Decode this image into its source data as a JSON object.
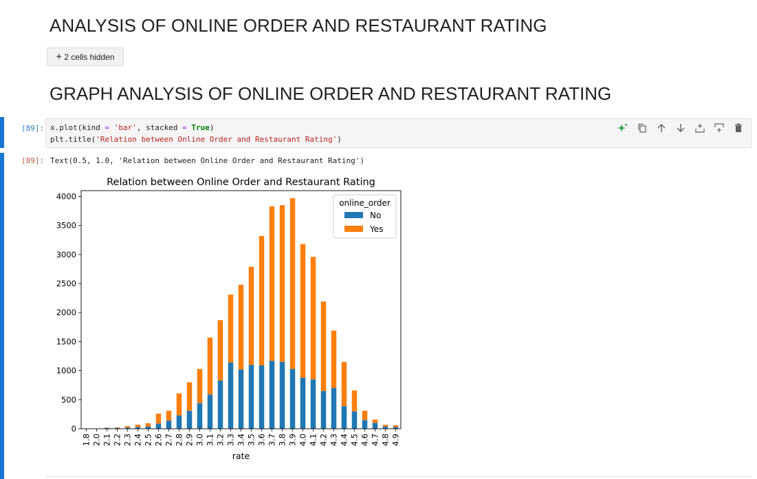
{
  "notebook": {
    "heading1": "ANALYSIS OF ONLINE ORDER AND RESTAURANT RATING",
    "hidden_cells": {
      "plus": "+",
      "label": "2 cells hidden"
    },
    "heading2": "GRAPH ANALYSIS OF ONLINE ORDER AND RESTAURANT RATING",
    "code_cell": {
      "prompt": "[89]:",
      "line1": {
        "a": "x.plot(kind ",
        "b": "=",
        "c": " ",
        "d": "'bar'",
        "e": ", stacked ",
        "f": "=",
        "g": " ",
        "h": "True",
        "i": ")"
      },
      "line2": {
        "a": "plt.title(",
        "b": "'Relation between Online Order and Restaurant Rating'",
        "c": ")"
      }
    },
    "output": {
      "prompt": "[89]:",
      "text": "Text(0.5, 1.0, 'Relation between Online Order and Restaurant Rating')"
    },
    "toolbar_icons": [
      "sparkle-icon",
      "copy-icon",
      "move-up-icon",
      "move-down-icon",
      "insert-above-icon",
      "insert-below-icon",
      "delete-icon"
    ],
    "colors": {
      "accent_bar": "#1976d2",
      "no": "#1f77b4",
      "yes": "#ff7f0e",
      "sparkle": "#1e9c3a"
    }
  },
  "chart_data": {
    "type": "bar",
    "stacked": true,
    "title": "Relation between Online Order and Restaurant Rating",
    "xlabel": "rate",
    "ylabel": "",
    "ylim": [
      0,
      4100
    ],
    "yticks": [
      "0",
      "500",
      "1000",
      "1500",
      "2000",
      "2500",
      "3000",
      "3500",
      "4000"
    ],
    "categories": [
      "1.8",
      "2.0",
      "2.1",
      "2.2",
      "2.3",
      "2.4",
      "2.5",
      "2.6",
      "2.7",
      "2.8",
      "2.9",
      "3.0",
      "3.1",
      "3.2",
      "3.3",
      "3.4",
      "3.5",
      "3.6",
      "3.7",
      "3.8",
      "3.9",
      "4.0",
      "4.1",
      "4.2",
      "4.3",
      "4.4",
      "4.5",
      "4.6",
      "4.7",
      "4.8",
      "4.9"
    ],
    "legend": {
      "title": "online_order",
      "position": "top-right"
    },
    "grid": false,
    "series": [
      {
        "name": "No",
        "color": "#1f77b4",
        "values": [
          5,
          5,
          15,
          15,
          20,
          30,
          40,
          90,
          140,
          230,
          310,
          440,
          590,
          830,
          1140,
          1020,
          1100,
          1090,
          1170,
          1150,
          1030,
          880,
          850,
          650,
          700,
          390,
          300,
          150,
          100,
          40,
          30
        ]
      },
      {
        "name": "Yes",
        "color": "#ff7f0e",
        "values": [
          0,
          0,
          5,
          10,
          25,
          40,
          55,
          170,
          170,
          380,
          490,
          590,
          980,
          1040,
          1170,
          1460,
          1690,
          2230,
          2660,
          2700,
          2940,
          2300,
          2110,
          1540,
          990,
          760,
          360,
          160,
          60,
          30,
          30
        ]
      }
    ]
  }
}
